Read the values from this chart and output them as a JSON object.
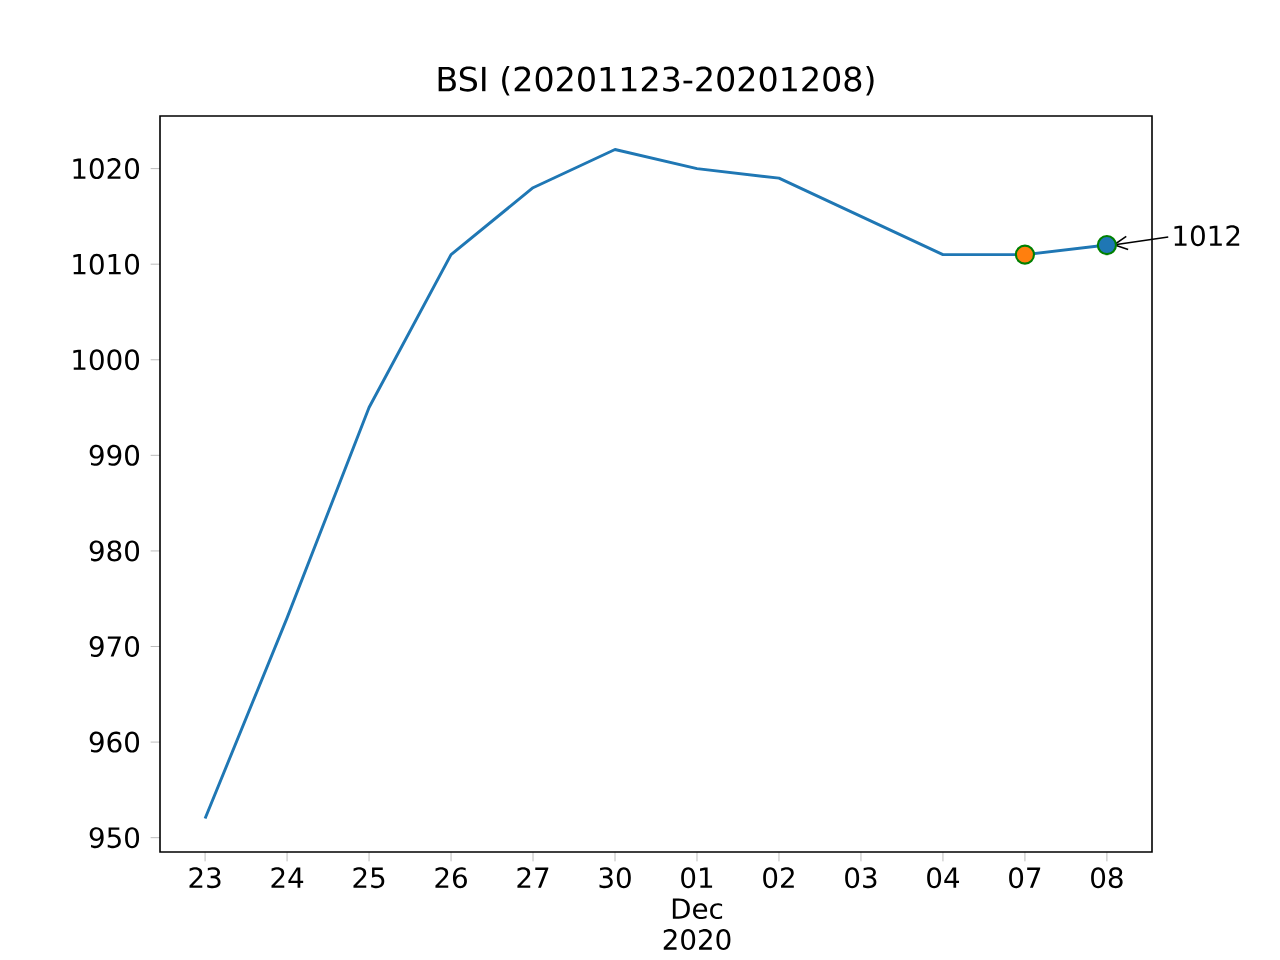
{
  "chart_data": {
    "type": "line",
    "title": "BSI (20201123-20201208)",
    "categories": [
      "23",
      "24",
      "25",
      "26",
      "27",
      "30",
      "01\nDec\n2020",
      "02",
      "03",
      "04",
      "07",
      "08"
    ],
    "series": [
      {
        "color": "#1f77b4",
        "values": [
          952,
          973,
          995,
          1011,
          1018,
          1022,
          1020,
          1019,
          1015,
          1011,
          1011,
          1012
        ]
      },
      {
        "type": "scatter",
        "color": "#ff7f0e",
        "marker": "circle",
        "values": [
          null,
          null,
          null,
          null,
          null,
          null,
          null,
          null,
          null,
          null,
          1011,
          null
        ]
      },
      {
        "type": "scatter",
        "color": "#1f77b4",
        "marker": "circle",
        "values": [
          null,
          null,
          null,
          null,
          null,
          null,
          null,
          null,
          null,
          null,
          null,
          1012
        ]
      }
    ],
    "ylim": [
      948.5,
      1025.5
    ],
    "yticks": [
      950,
      960,
      970,
      980,
      990,
      1000,
      1010,
      1020
    ],
    "annotations": [
      {
        "text": "1012",
        "x": "08",
        "y": 1012
      }
    ]
  }
}
